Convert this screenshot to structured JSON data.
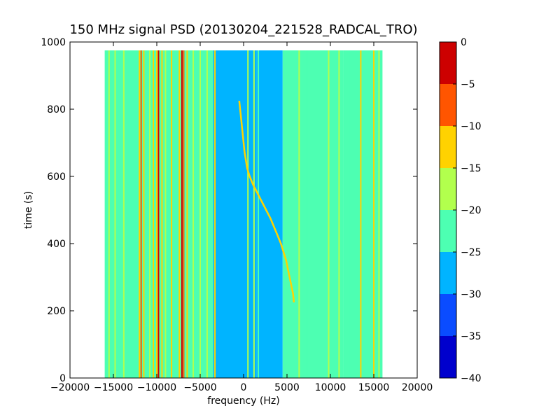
{
  "chart_data": {
    "type": "heatmap",
    "title": "150 MHz signal PSD (20130204_221528_RADCAL_TRO)",
    "xlabel": "frequency (Hz)",
    "ylabel": "time (s)",
    "xlim": [
      -20000,
      20000
    ],
    "ylim": [
      0,
      1000
    ],
    "x_ticks": [
      "−20000",
      "−15000",
      "−10000",
      "−5000",
      "0",
      "5000",
      "10000",
      "15000",
      "20000"
    ],
    "y_ticks": [
      "0",
      "200",
      "400",
      "600",
      "800",
      "1000"
    ],
    "data_extent": {
      "x": [
        -16000,
        16000
      ],
      "y": [
        0,
        975
      ]
    },
    "grid": false,
    "colorbar": {
      "range": [
        -40,
        0
      ],
      "ticks": [
        "0",
        "−5",
        "−10",
        "−15",
        "−20",
        "−25",
        "−30",
        "−35",
        "−40"
      ],
      "levels": [
        {
          "from": -40,
          "to": -35,
          "color": "#0000cd"
        },
        {
          "from": -35,
          "to": -30,
          "color": "#0a4cff"
        },
        {
          "from": -30,
          "to": -25,
          "color": "#00b4ff"
        },
        {
          "from": -25,
          "to": -20,
          "color": "#4dffb2"
        },
        {
          "from": -20,
          "to": -15,
          "color": "#b2ff4d"
        },
        {
          "from": -15,
          "to": -10,
          "color": "#ffd200"
        },
        {
          "from": -10,
          "to": -5,
          "color": "#ff5500"
        },
        {
          "from": -5,
          "to": 0,
          "color": "#cd0000"
        }
      ]
    },
    "background_regions": [
      {
        "x": [
          -16000,
          -3500
        ],
        "level": -22.5
      },
      {
        "x": [
          -3500,
          1500
        ],
        "level": -27.5
      },
      {
        "x": [
          1500,
          4500
        ],
        "level": -27.5
      },
      {
        "x": [
          4500,
          11500
        ],
        "level": -25
      },
      {
        "x": [
          11500,
          16000
        ],
        "level": -22.5
      }
    ],
    "vertical_lines": [
      {
        "x": -15500,
        "level": -17.5
      },
      {
        "x": -14800,
        "level": -17.5
      },
      {
        "x": -13800,
        "level": -17.5
      },
      {
        "x": -12000,
        "level": -12.5
      },
      {
        "x": -11800,
        "level": -7.5
      },
      {
        "x": -11500,
        "level": -12.5
      },
      {
        "x": -10800,
        "level": -17.5
      },
      {
        "x": -10400,
        "level": -12.5
      },
      {
        "x": -10000,
        "level": -12.5
      },
      {
        "x": -9800,
        "level": -2.5
      },
      {
        "x": -9400,
        "level": -12.5
      },
      {
        "x": -9000,
        "level": -17.5
      },
      {
        "x": -8300,
        "level": -12.5
      },
      {
        "x": -7400,
        "level": -12.5
      },
      {
        "x": -7100,
        "level": -2.5
      },
      {
        "x": -6900,
        "level": -7.5
      },
      {
        "x": -6500,
        "level": -12.5
      },
      {
        "x": -5800,
        "level": -17.5
      },
      {
        "x": -5000,
        "level": -17.5
      },
      {
        "x": -4200,
        "level": -17.5
      },
      {
        "x": -3300,
        "level": -12.5
      },
      {
        "x": 500,
        "level": -17.5
      },
      {
        "x": 1200,
        "level": -17.5
      },
      {
        "x": 1700,
        "level": -22.5
      },
      {
        "x": 6400,
        "level": -17.5
      },
      {
        "x": 7300,
        "level": -22.5
      },
      {
        "x": 9800,
        "level": -17.5
      },
      {
        "x": 11000,
        "level": -17.5
      },
      {
        "x": 11600,
        "level": -22.5
      },
      {
        "x": 12300,
        "level": -22.5
      },
      {
        "x": 13500,
        "level": -12.5
      },
      {
        "x": 15000,
        "level": -12.5
      },
      {
        "x": 15600,
        "level": -17.5
      }
    ],
    "drifting_signal": {
      "level": -12.5,
      "points": [
        {
          "t": 825,
          "f": -500
        },
        {
          "t": 775,
          "f": -300
        },
        {
          "t": 725,
          "f": -100
        },
        {
          "t": 675,
          "f": 100
        },
        {
          "t": 625,
          "f": 400
        },
        {
          "t": 600,
          "f": 700
        },
        {
          "t": 575,
          "f": 1100
        },
        {
          "t": 550,
          "f": 1600
        },
        {
          "t": 525,
          "f": 2100
        },
        {
          "t": 500,
          "f": 2600
        },
        {
          "t": 475,
          "f": 3100
        },
        {
          "t": 450,
          "f": 3500
        },
        {
          "t": 425,
          "f": 3900
        },
        {
          "t": 400,
          "f": 4300
        },
        {
          "t": 375,
          "f": 4600
        },
        {
          "t": 350,
          "f": 4900
        },
        {
          "t": 325,
          "f": 5100
        },
        {
          "t": 300,
          "f": 5300
        },
        {
          "t": 275,
          "f": 5500
        },
        {
          "t": 250,
          "f": 5700
        },
        {
          "t": 225,
          "f": 5800
        }
      ]
    }
  }
}
